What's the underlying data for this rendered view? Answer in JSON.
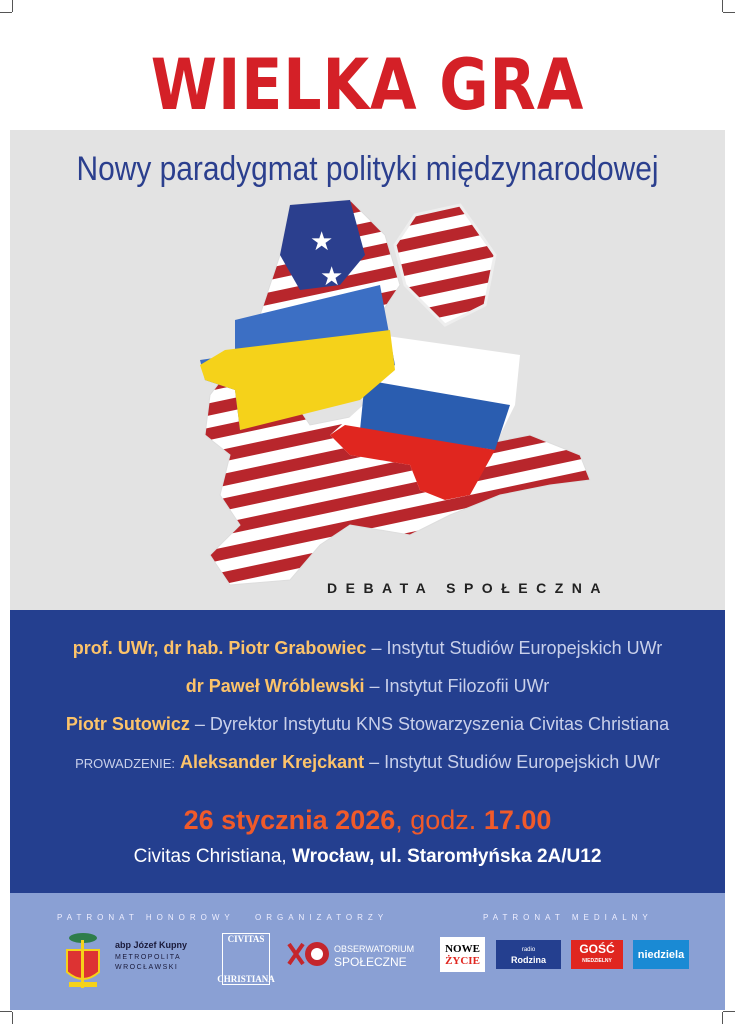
{
  "title": "WIELKA GRA",
  "subtitle": "Nowy paradygmat polityki międzynarodowej",
  "event_type": "DEBATA SPOŁECZNA",
  "speakers": [
    {
      "name": "prof. UWr, dr hab. Piotr Grabowiec",
      "affiliation": "– Instytut Studiów Europejskich UWr"
    },
    {
      "name": "dr Paweł Wróblewski",
      "affiliation": "– Instytut Filozofii UWr"
    },
    {
      "name": "Piotr Sutowicz",
      "affiliation": "– Dyrektor Instytutu KNS Stowarzyszenia Civitas Christiana"
    },
    {
      "prefix": "PROWADZENIE:",
      "name": "Aleksander Krejckant",
      "affiliation": "– Instytut Studiów Europejskich UWr"
    }
  ],
  "date": {
    "day": "26 stycznia 2026",
    "sep": ", godz.",
    "time": "17.00"
  },
  "venue": {
    "org": "Civitas Christiana,",
    "address": "Wrocław, ul. Staromłyńska 2A/U12"
  },
  "footer": {
    "honorary_label": "PATRONAT HONOROWY",
    "honorary_name": "abp Józef Kupny",
    "honorary_title1": "METROPOLITA",
    "honorary_title2": "WROCŁAWSKI",
    "organizers_label": "ORGANIZATORZY",
    "org1_top": "CIVITAS",
    "org1_bottom": "CHRISTIANA",
    "org2_line1": "OBSERWATORIUM",
    "org2_line2": "SPOŁECZNE",
    "media_label": "PATRONAT MEDIALNY",
    "media": [
      {
        "l1": "NOWE",
        "l2": "ŻYCIE"
      },
      {
        "l1": "radio",
        "l2": "Rodzina"
      },
      {
        "l1": "GOŚĆ",
        "l2": "NIEDZIELNY"
      },
      {
        "l1": "niedziela",
        "l2": ""
      }
    ]
  },
  "colors": {
    "red": "#d42027",
    "navy": "#243f8f",
    "gold": "#fcc36a",
    "orange": "#f05a2a",
    "footer": "#8aa0d4",
    "gray": "#e3e3e3"
  }
}
